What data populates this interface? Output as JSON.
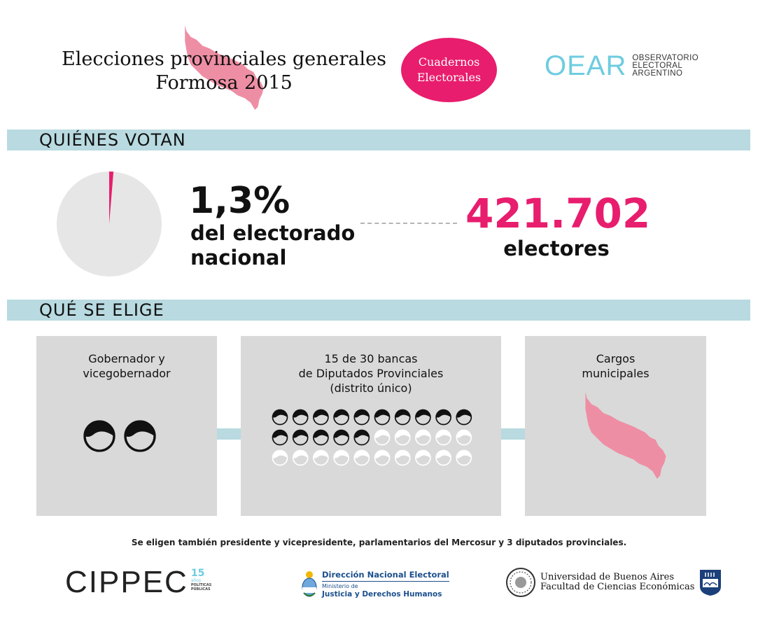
{
  "header": {
    "title_line1": "Elecciones provinciales generales",
    "title_line2": "Formosa 2015",
    "badge_line1": "Cuadernos",
    "badge_line2": "Electorales",
    "oear": {
      "wordmark": "OEAR",
      "line1": "OBSERVATORIO",
      "line2": "ELECTORAL",
      "line3": "ARGENTINO"
    }
  },
  "colors": {
    "accent": "#e81d6d",
    "bar": "#b8dae0",
    "province": "#ee8ea4",
    "card": "#d9d9d9",
    "pie": "#e6e6e6"
  },
  "quienes_votan": {
    "heading": "QUIÉNES VOTAN",
    "share_percent": 1.3,
    "percent_text": "1,3%",
    "percent_caption_line1": "del electorado",
    "percent_caption_line2": "nacional",
    "electors_number": "421.702",
    "electors_label": "electores"
  },
  "que_se_elige": {
    "heading": "QUÉ SE ELIGE",
    "governor": {
      "title_line1": "Gobernador y",
      "title_line2": "vicegobernador",
      "people_count": 2,
      "icon": "person-head-icon"
    },
    "deputies": {
      "title_line1": "15 de 30 bancas",
      "title_line2": "de Diputados Provinciales",
      "title_line3": "(distrito único)",
      "seats_elected": 15,
      "seats_total": 30,
      "icon": "person-head-icon"
    },
    "municipal": {
      "title_line1": "Cargos",
      "title_line2": "municipales",
      "icon": "formosa-province-icon"
    }
  },
  "footnote": "Se eligen también presidente y vicepresidente, parlamentarios del Mercosur y 3 diputados provinciales.",
  "footer": {
    "cippec": {
      "wordmark": "CIPPEC",
      "years_number": "15",
      "years_label": "años",
      "tag_line1": "POLÍTICAS",
      "tag_line2": "PÚBLICAS"
    },
    "dne": {
      "title": "Dirección Nacional Electoral",
      "ministry_line1": "Ministerio de",
      "ministry_line2": "Justicia y Derechos Humanos"
    },
    "uba": {
      "line1": "Universidad de Buenos Aires",
      "line2": "Facultad de Ciencias Económicas"
    }
  }
}
